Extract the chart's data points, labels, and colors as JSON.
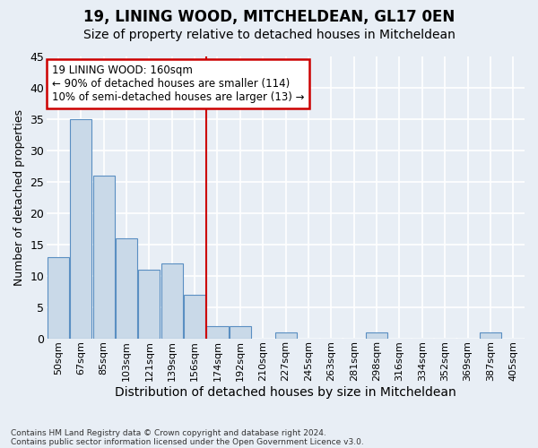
{
  "title": "19, LINING WOOD, MITCHELDEAN, GL17 0EN",
  "subtitle": "Size of property relative to detached houses in Mitcheldean",
  "xlabel": "Distribution of detached houses by size in Mitcheldean",
  "ylabel": "Number of detached properties",
  "categories": [
    "50sqm",
    "67sqm",
    "85sqm",
    "103sqm",
    "121sqm",
    "139sqm",
    "156sqm",
    "174sqm",
    "192sqm",
    "210sqm",
    "227sqm",
    "245sqm",
    "263sqm",
    "281sqm",
    "298sqm",
    "316sqm",
    "334sqm",
    "352sqm",
    "369sqm",
    "387sqm",
    "405sqm"
  ],
  "values": [
    13,
    35,
    26,
    16,
    11,
    12,
    7,
    2,
    2,
    0,
    1,
    0,
    0,
    0,
    1,
    0,
    0,
    0,
    0,
    1,
    0
  ],
  "bar_color": "#c9d9e8",
  "bar_edge_color": "#5a8fc2",
  "vline_x": 6.5,
  "vline_color": "#cc0000",
  "annotation_line1": "19 LINING WOOD: 160sqm",
  "annotation_line2": "← 90% of detached houses are smaller (114)",
  "annotation_line3": "10% of semi-detached houses are larger (13) →",
  "annotation_box_color": "#ffffff",
  "annotation_box_edge": "#cc0000",
  "ylim": [
    0,
    45
  ],
  "yticks": [
    0,
    5,
    10,
    15,
    20,
    25,
    30,
    35,
    40,
    45
  ],
  "footnote1": "Contains HM Land Registry data © Crown copyright and database right 2024.",
  "footnote2": "Contains public sector information licensed under the Open Government Licence v3.0.",
  "bg_color": "#e8eef5",
  "plot_bg_color": "#e8eef5",
  "grid_color": "#ffffff",
  "title_fontsize": 12,
  "subtitle_fontsize": 10,
  "tick_fontsize": 8,
  "ylabel_fontsize": 9,
  "xlabel_fontsize": 10,
  "annotation_fontsize": 8.5
}
